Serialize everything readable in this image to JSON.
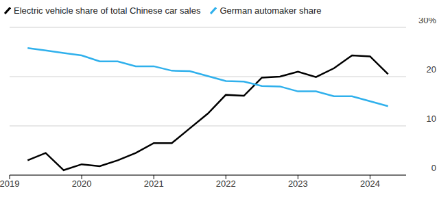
{
  "chart_data": {
    "type": "line",
    "x": [
      2019.25,
      2019.5,
      2019.75,
      2020,
      2020.25,
      2020.5,
      2020.75,
      2021,
      2021.25,
      2021.5,
      2021.75,
      2022,
      2022.25,
      2022.5,
      2022.75,
      2023,
      2023.25,
      2023.5,
      2023.75,
      2024,
      2024.25
    ],
    "series": [
      {
        "name": "Electric vehicle share of total Chinese car sales",
        "color": "#000000",
        "values": [
          3.0,
          4.5,
          1.0,
          2.2,
          1.8,
          3.0,
          4.5,
          6.5,
          6.5,
          9.5,
          12.5,
          16.3,
          16.1,
          19.8,
          20.0,
          21.0,
          19.9,
          21.7,
          24.3,
          24.1,
          20.5
        ]
      },
      {
        "name": "German automaker share",
        "color": "#2fb0ec",
        "values": [
          25.8,
          25.3,
          24.8,
          24.3,
          23.1,
          23.1,
          22.1,
          22.1,
          21.2,
          21.1,
          20.1,
          19.1,
          19.0,
          18.1,
          18.0,
          17.0,
          17.0,
          16.0,
          16.0,
          15.0,
          14.0
        ]
      }
    ],
    "xlim": [
      2019,
      2024.5
    ],
    "xticks": [
      2019,
      2020,
      2021,
      2022,
      2023,
      2024
    ],
    "ylim": [
      0,
      30
    ],
    "yticks": [
      0,
      10,
      20,
      {
        "value": 30,
        "label": "30%"
      }
    ],
    "grid": true,
    "legend": "top-left"
  }
}
